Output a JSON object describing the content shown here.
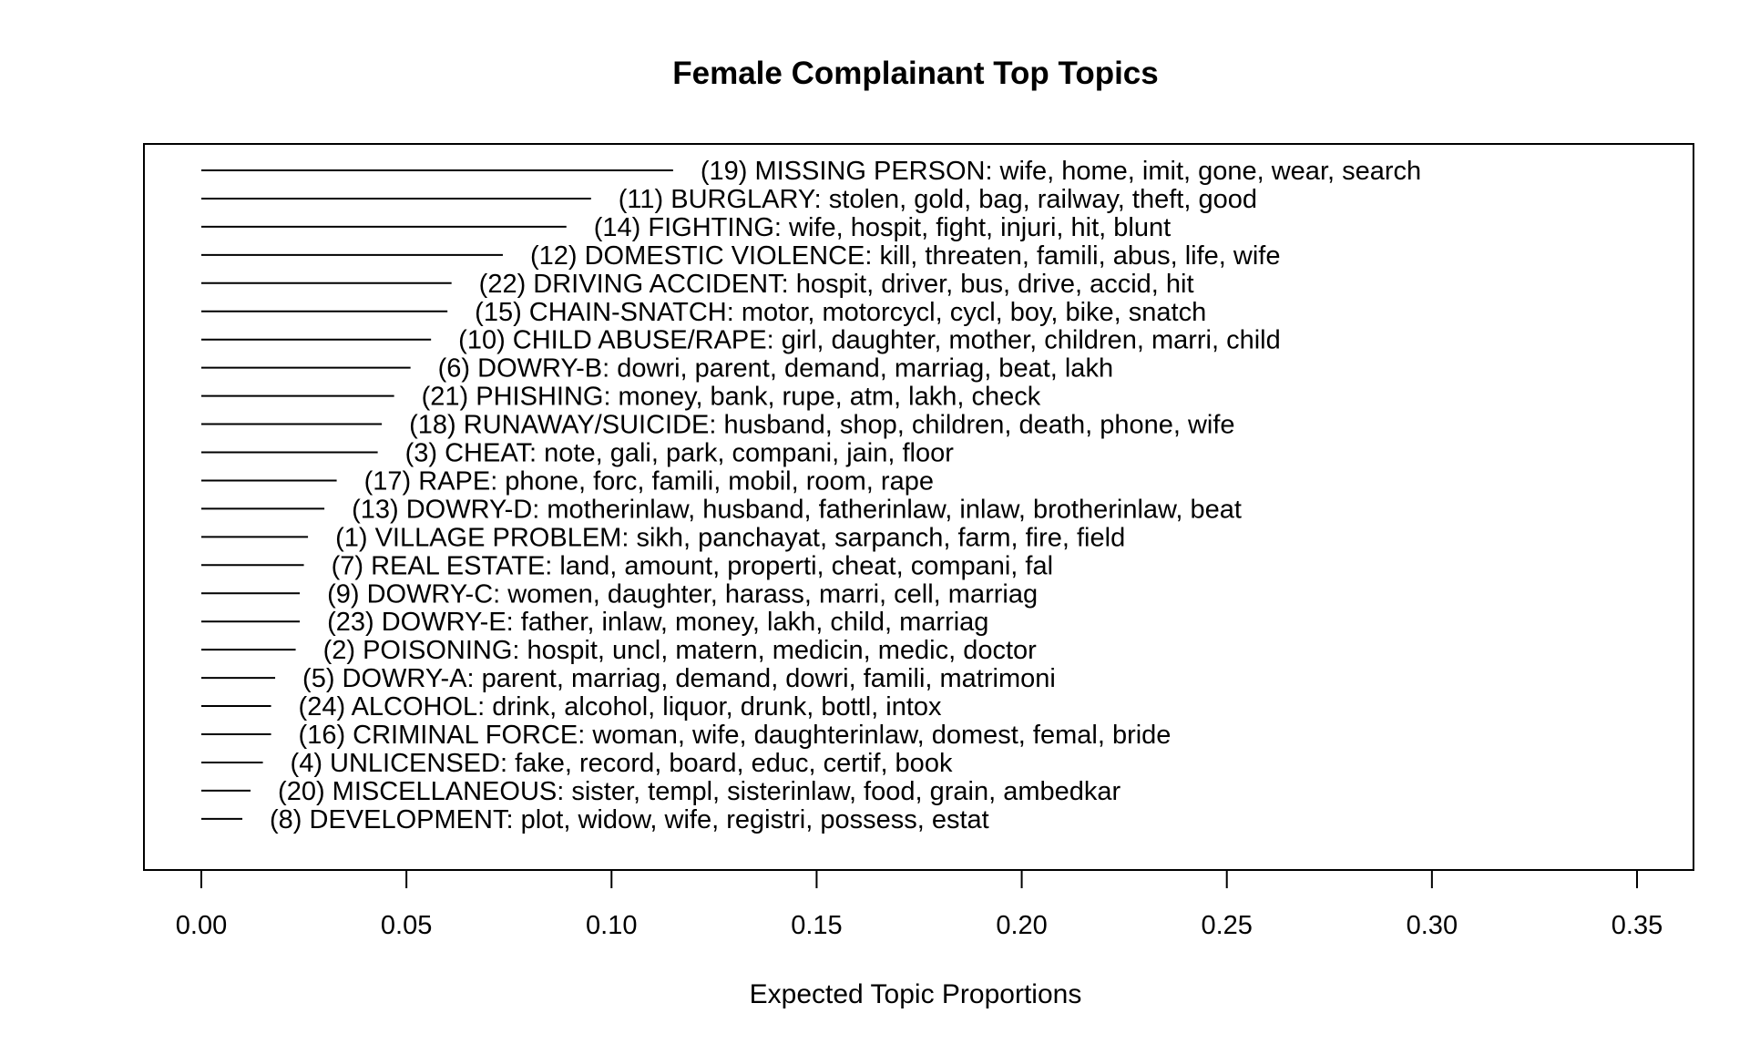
{
  "chart_data": {
    "type": "bar",
    "title": "Female Complainant Top Topics",
    "xlabel": "Expected Topic Proportions",
    "ylabel": "",
    "xlim": [
      0.0,
      0.35
    ],
    "xticks": [
      "0.00",
      "0.05",
      "0.10",
      "0.15",
      "0.20",
      "0.25",
      "0.30",
      "0.35"
    ],
    "grid": false,
    "orientation": "horizontal",
    "series": [
      {
        "categories": [
          "(19) MISSING PERSON: wife, home, imit, gone, wear, search",
          "(11) BURGLARY: stolen, gold, bag, railway, theft, good",
          "(14) FIGHTING: wife, hospit, fight, injuri, hit, blunt",
          "(12) DOMESTIC VIOLENCE: kill, threaten, famili, abus, life, wife",
          "(22) DRIVING ACCIDENT: hospit, driver, bus, drive, accid, hit",
          "(15) CHAIN-SNATCH: motor, motorcycl, cycl, boy, bike, snatch",
          "(10) CHILD ABUSE/RAPE: girl, daughter, mother, children, marri, child",
          "(6) DOWRY-B: dowri, parent, demand, marriag, beat, lakh",
          "(21) PHISHING: money, bank, rupe, atm, lakh, check",
          "(18) RUNAWAY/SUICIDE: husband, shop, children, death, phone, wife",
          "(3) CHEAT: note, gali, park, compani, jain, floor",
          "(17) RAPE: phone, forc, famili, mobil, room, rape",
          "(13) DOWRY-D: motherinlaw, husband, fatherinlaw, inlaw, brotherinlaw, beat",
          "(1) VILLAGE PROBLEM: sikh, panchayat, sarpanch, farm, fire, field",
          "(7) REAL ESTATE: land, amount, properti, cheat, compani, fal",
          "(9) DOWRY-C: women, daughter, harass, marri, cell, marriag",
          "(23) DOWRY-E: father, inlaw, money, lakh, child, marriag",
          "(2) POISONING: hospit, uncl, matern, medicin, medic, doctor",
          "(5) DOWRY-A: parent, marriag, demand, dowri, famili, matrimoni",
          "(24) ALCOHOL: drink, alcohol, liquor, drunk, bottl, intox",
          "(16) CRIMINAL FORCE: woman, wife, daughterinlaw, domest, femal, bride",
          "(4) UNLICENSED: fake, record, board, educ, certif, book",
          "(20) MISCELLANEOUS: sister, templ, sisterinlaw, food, grain, ambedkar",
          "(8) DEVELOPMENT: plot, widow, wife, registri, possess, estat"
        ],
        "values": [
          0.115,
          0.095,
          0.089,
          0.0735,
          0.061,
          0.06,
          0.056,
          0.051,
          0.047,
          0.044,
          0.043,
          0.033,
          0.03,
          0.026,
          0.025,
          0.024,
          0.024,
          0.023,
          0.018,
          0.017,
          0.017,
          0.015,
          0.012,
          0.01
        ]
      }
    ],
    "colors": {
      "line": "#000000",
      "text": "#000000",
      "background": "#ffffff"
    }
  }
}
